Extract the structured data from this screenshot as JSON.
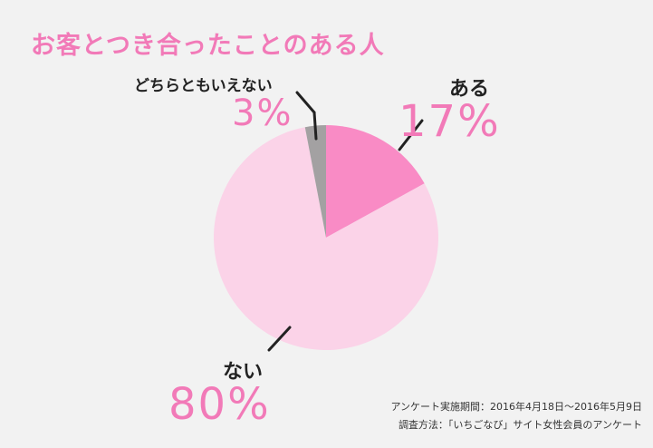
{
  "title": "お客とつき合ったことのある人",
  "chart_data": {
    "type": "pie",
    "slices": [
      {
        "label": "ある",
        "value": 17,
        "display": "17%",
        "color": "#f98bc5"
      },
      {
        "label": "ない",
        "value": 80,
        "display": "80%",
        "color": "#fbd3e8"
      },
      {
        "label": "どちらともいえない",
        "value": 3,
        "display": "3%",
        "color": "#a3a1a2"
      }
    ],
    "legend": "none"
  },
  "notes": {
    "period": "アンケート実施期間：2016年4月18日～2016年5月9日",
    "method": "調査方法：「いちごなび」サイト女性会員のアンケート"
  }
}
